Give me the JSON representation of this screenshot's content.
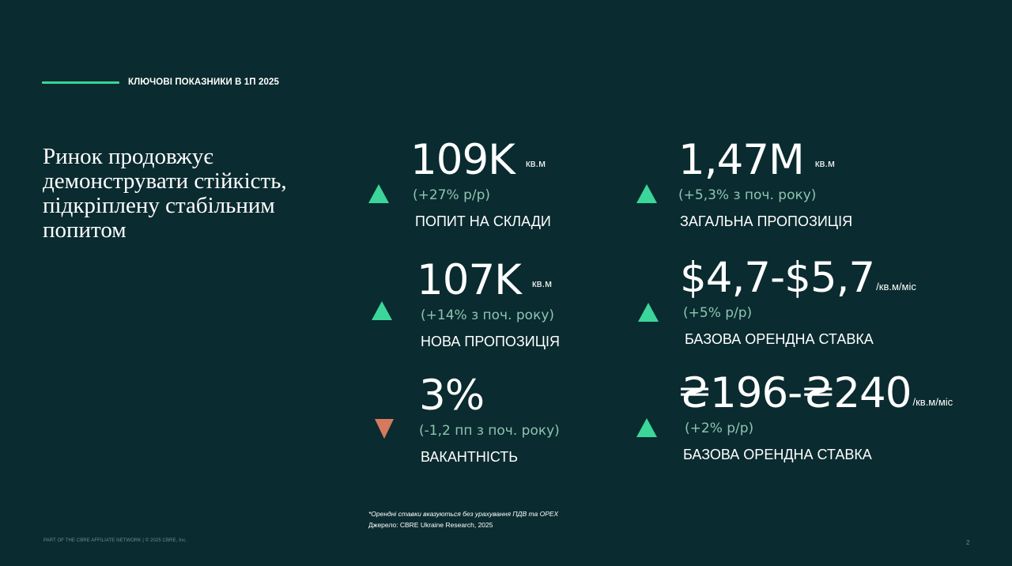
{
  "header": {
    "title": "КЛЮЧОВІ ПОКАЗНИКИ В 1П 2025"
  },
  "headline": "Ринок продовжує демонструвати стійкість, підкріплену стабільним попитом",
  "kpis": [
    {
      "value": "109K",
      "unit": "кв.м",
      "change": "(+27% р/р)",
      "label": "ПОПИТ НА СКЛАДИ",
      "trend": "up"
    },
    {
      "value": "1,47M",
      "unit": "кв.м",
      "change": "(+5,3% з поч. року)",
      "label": "ЗАГАЛЬНА ПРОПОЗИЦІЯ",
      "trend": "up"
    },
    {
      "value": "107K",
      "unit": "кв.м",
      "change": "(+14% з поч. року)",
      "label": "НОВА ПРОПОЗИЦІЯ",
      "trend": "up"
    },
    {
      "value": "$4,7-$5,7",
      "unit": "/кв.м/міс",
      "change": "(+5% р/р)",
      "label": "БАЗОВА ОРЕНДНА СТАВКА",
      "trend": "up"
    },
    {
      "value": "3%",
      "unit": "",
      "change": "(-1,2 пп з поч. року)",
      "label": "ВАКАНТНІСТЬ",
      "trend": "down"
    },
    {
      "value": "₴196-₴240",
      "unit": "/кв.м/міс",
      "change": "(+2% р/р)",
      "label": "БАЗОВА ОРЕНДНА СТАВКА",
      "trend": "up"
    }
  ],
  "footnote": {
    "note": "*Орендні ставки вказуються без урахування ПДВ та OPEX",
    "source": "Джерело: CBRE Ukraine Research, 2025"
  },
  "footer": {
    "copyright": "PART OF THE CBRE AFFILIATE NETWORK | © 2025 CBRE, Inc.",
    "page_number": "2"
  },
  "colors": {
    "background": "#0a2b2f",
    "accent": "#3bd699",
    "negative": "#d67a5e",
    "muted_text": "#8fc4b2"
  }
}
